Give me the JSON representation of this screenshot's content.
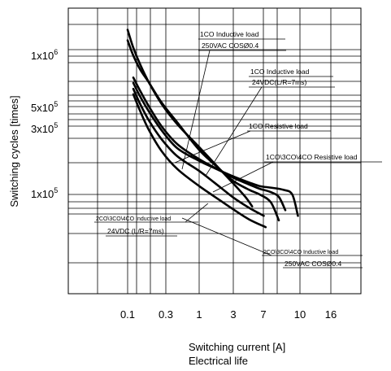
{
  "chart_data": {
    "type": "line",
    "title": "",
    "caption": "Electrical life",
    "xlabel": "Switching current [A]",
    "ylabel": "Switching cycles [times]",
    "x_scale": "log",
    "y_scale": "log",
    "x_ticks": [
      "0.1",
      "0.3",
      "1",
      "3",
      "7",
      "10",
      "16"
    ],
    "y_ticks": [
      {
        "value": 1000000,
        "mantissa": "1x10",
        "exp": "6"
      },
      {
        "value": 500000,
        "mantissa": "5x10",
        "exp": "5"
      },
      {
        "value": 300000,
        "mantissa": "3x10",
        "exp": "5"
      },
      {
        "value": 100000,
        "mantissa": "1x10",
        "exp": "5"
      }
    ],
    "grid": true,
    "series": [
      {
        "name": "1CO Inductive load 250VAC COSØ0.4",
        "x": [
          0.1,
          0.12,
          0.15,
          0.2,
          0.3,
          0.5,
          1,
          2,
          3,
          4.5,
          5.5
        ],
        "y": [
          1550000,
          1150000,
          870000,
          640000,
          450000,
          320000,
          220000,
          150000,
          120000,
          95000,
          82000
        ]
      },
      {
        "name": "1CO Inductive load 24VDC(L/R=7ms)",
        "x": [
          0.1,
          0.12,
          0.15,
          0.2,
          0.3,
          0.5,
          1,
          2,
          3,
          5,
          7,
          10,
          13
        ],
        "y": [
          1300000,
          1010000,
          800000,
          640000,
          460000,
          330000,
          210000,
          150000,
          125000,
          108000,
          100000,
          88000,
          65000
        ]
      },
      {
        "name": "1CO Resistive load",
        "x": [
          0.12,
          0.15,
          0.2,
          0.3,
          0.5,
          1,
          2,
          3,
          5,
          7,
          10,
          13,
          16
        ],
        "y": [
          700000,
          560000,
          430000,
          310000,
          230000,
          180000,
          148000,
          132000,
          118000,
          110000,
          104000,
          96000,
          77000
        ]
      },
      {
        "name": "1CO, 3CO, 4CO Resistive load",
        "x": [
          0.12,
          0.15,
          0.2,
          0.3,
          0.5,
          1,
          2,
          3,
          5,
          7,
          10,
          15,
          20,
          24
        ],
        "y": [
          640000,
          510000,
          395000,
          290000,
          215000,
          175000,
          148000,
          135000,
          122000,
          115000,
          112000,
          108000,
          100000,
          70000
        ]
      },
      {
        "name": "2CO, 3CO, 4CO Inductive load 24VDC (L/R=7ms)",
        "x": [
          0.12,
          0.15,
          0.2,
          0.3,
          0.5,
          1,
          2,
          3,
          5,
          8
        ],
        "y": [
          580000,
          450000,
          340000,
          250000,
          188000,
          148000,
          112000,
          95000,
          80000,
          70000
        ]
      },
      {
        "name": "2CO, 3CO, 4CO Inductive load 250VAC COSØ0.4",
        "x": [
          0.12,
          0.15,
          0.2,
          0.3,
          0.5,
          1,
          2,
          3,
          5,
          8.5
        ],
        "y": [
          530000,
          400000,
          290000,
          205000,
          152000,
          115000,
          90000,
          78000,
          66000,
          58000
        ]
      }
    ],
    "annotations": [
      {
        "lines": [
          "1CO Inductive load",
          "250VAC COSØ0.4"
        ]
      },
      {
        "lines": [
          "1CO Inductive load",
          "24VDC(L/R=7ms)"
        ]
      },
      {
        "lines": [
          "1CO Resistive load"
        ]
      },
      {
        "lines": [
          "1CO\\3CO\\4CO Resistive load"
        ]
      },
      {
        "lines": [
          "2CO\\3CO\\4CO Inductive load",
          "24VDC (L/R=7ms)"
        ]
      },
      {
        "lines": [
          "2CO\\3CO\\4CO Inductive load",
          "250VAC COSØ0.4"
        ]
      }
    ]
  }
}
